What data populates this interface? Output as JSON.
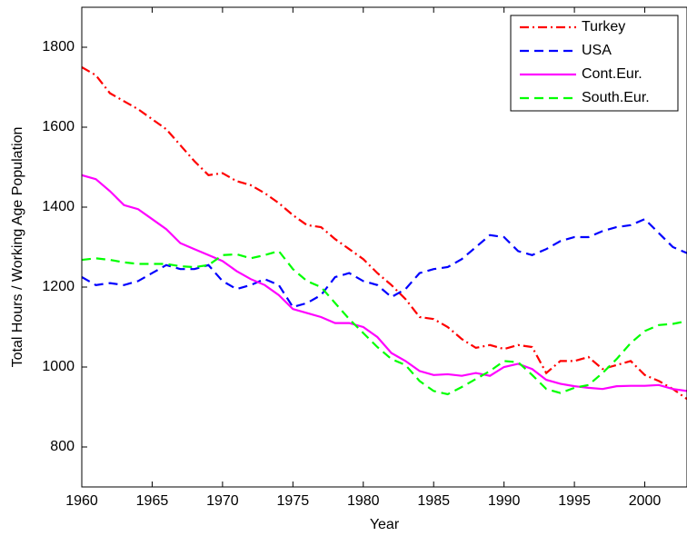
{
  "chart_data": {
    "type": "line",
    "xlabel": "Year",
    "ylabel": "Total Hours / Working Age Population",
    "x": [
      1960,
      1961,
      1962,
      1963,
      1964,
      1965,
      1966,
      1967,
      1968,
      1969,
      1970,
      1971,
      1972,
      1973,
      1974,
      1975,
      1976,
      1977,
      1978,
      1979,
      1980,
      1981,
      1982,
      1983,
      1984,
      1985,
      1986,
      1987,
      1988,
      1989,
      1990,
      1991,
      1992,
      1993,
      1994,
      1995,
      1996,
      1997,
      1998,
      1999,
      2000,
      2001,
      2002,
      2003
    ],
    "xlim": [
      1960,
      2003
    ],
    "xticks": [
      1960,
      1965,
      1970,
      1975,
      1980,
      1985,
      1990,
      1995,
      2000
    ],
    "ylim": [
      700,
      1900
    ],
    "yticks": [
      800,
      1000,
      1200,
      1400,
      1600,
      1800
    ],
    "legend": "upper right",
    "series": [
      {
        "name": "Turkey",
        "color": "#ff0000",
        "style": "dashdot",
        "values": [
          1750,
          1730,
          1685,
          1665,
          1645,
          1620,
          1595,
          1555,
          1515,
          1480,
          1485,
          1465,
          1455,
          1435,
          1410,
          1380,
          1355,
          1350,
          1320,
          1295,
          1270,
          1235,
          1205,
          1170,
          1125,
          1120,
          1100,
          1070,
          1048,
          1055,
          1045,
          1055,
          1050,
          985,
          1015,
          1015,
          1025,
          995,
          1005,
          1015,
          980,
          965,
          945,
          920
        ]
      },
      {
        "name": "USA",
        "color": "#0000ff",
        "style": "dashed",
        "values": [
          1225,
          1205,
          1210,
          1205,
          1215,
          1235,
          1255,
          1245,
          1245,
          1255,
          1215,
          1195,
          1205,
          1220,
          1205,
          1150,
          1160,
          1180,
          1225,
          1235,
          1215,
          1205,
          1175,
          1195,
          1235,
          1245,
          1250,
          1270,
          1300,
          1330,
          1325,
          1290,
          1280,
          1295,
          1315,
          1325,
          1325,
          1340,
          1350,
          1355,
          1370,
          1335,
          1300,
          1285
        ]
      },
      {
        "name": "Cont.Eur.",
        "color": "#ff00ff",
        "style": "solid",
        "values": [
          1480,
          1470,
          1440,
          1405,
          1395,
          1370,
          1345,
          1310,
          1295,
          1280,
          1265,
          1240,
          1220,
          1205,
          1180,
          1145,
          1135,
          1125,
          1110,
          1110,
          1100,
          1075,
          1035,
          1015,
          990,
          980,
          982,
          978,
          985,
          978,
          1000,
          1008,
          995,
          968,
          958,
          952,
          948,
          945,
          952,
          953,
          953,
          955,
          945,
          940
        ]
      },
      {
        "name": "South.Eur.",
        "color": "#00ff00",
        "style": "dashed",
        "values": [
          1268,
          1272,
          1268,
          1262,
          1258,
          1258,
          1258,
          1252,
          1250,
          1255,
          1280,
          1282,
          1272,
          1280,
          1290,
          1245,
          1215,
          1200,
          1160,
          1120,
          1085,
          1050,
          1020,
          1005,
          965,
          940,
          932,
          950,
          970,
          990,
          1015,
          1012,
          980,
          945,
          935,
          948,
          955,
          985,
          1020,
          1060,
          1090,
          1105,
          1108,
          1115
        ]
      }
    ]
  }
}
